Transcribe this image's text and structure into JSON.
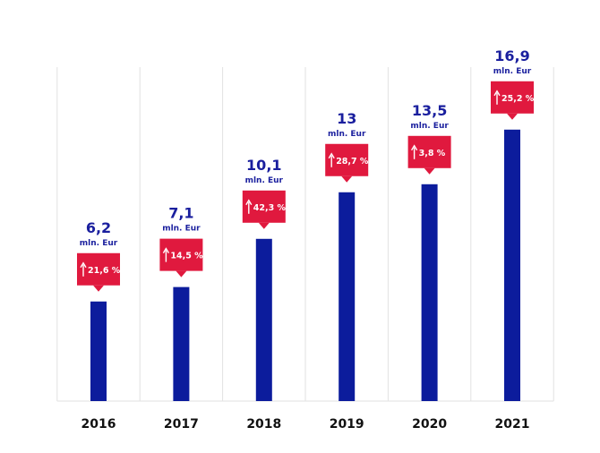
{
  "colors": {
    "bar": "#0c1c9c",
    "badge": "#e0193e",
    "value_text": "#1a1f9e",
    "divider": "#e2e2e2",
    "year_text": "#111111"
  },
  "chart_data": {
    "type": "bar",
    "categories": [
      "2016",
      "2017",
      "2018",
      "2019",
      "2020",
      "2021"
    ],
    "values": [
      6.2,
      7.1,
      10.1,
      13,
      13.5,
      16.9
    ],
    "value_labels": [
      "6,2",
      "7,1",
      "10,1",
      "13",
      "13,5",
      "16,9"
    ],
    "unit": "mln. Eur",
    "growth_labels": [
      "21,6 %",
      "14,5 %",
      "42,3 %",
      "28,7 %",
      "3,8 %",
      "25,2 %"
    ],
    "title": "",
    "xlabel": "",
    "ylabel": "",
    "ylim": [
      0,
      17
    ],
    "grid": false,
    "legend": "none"
  }
}
